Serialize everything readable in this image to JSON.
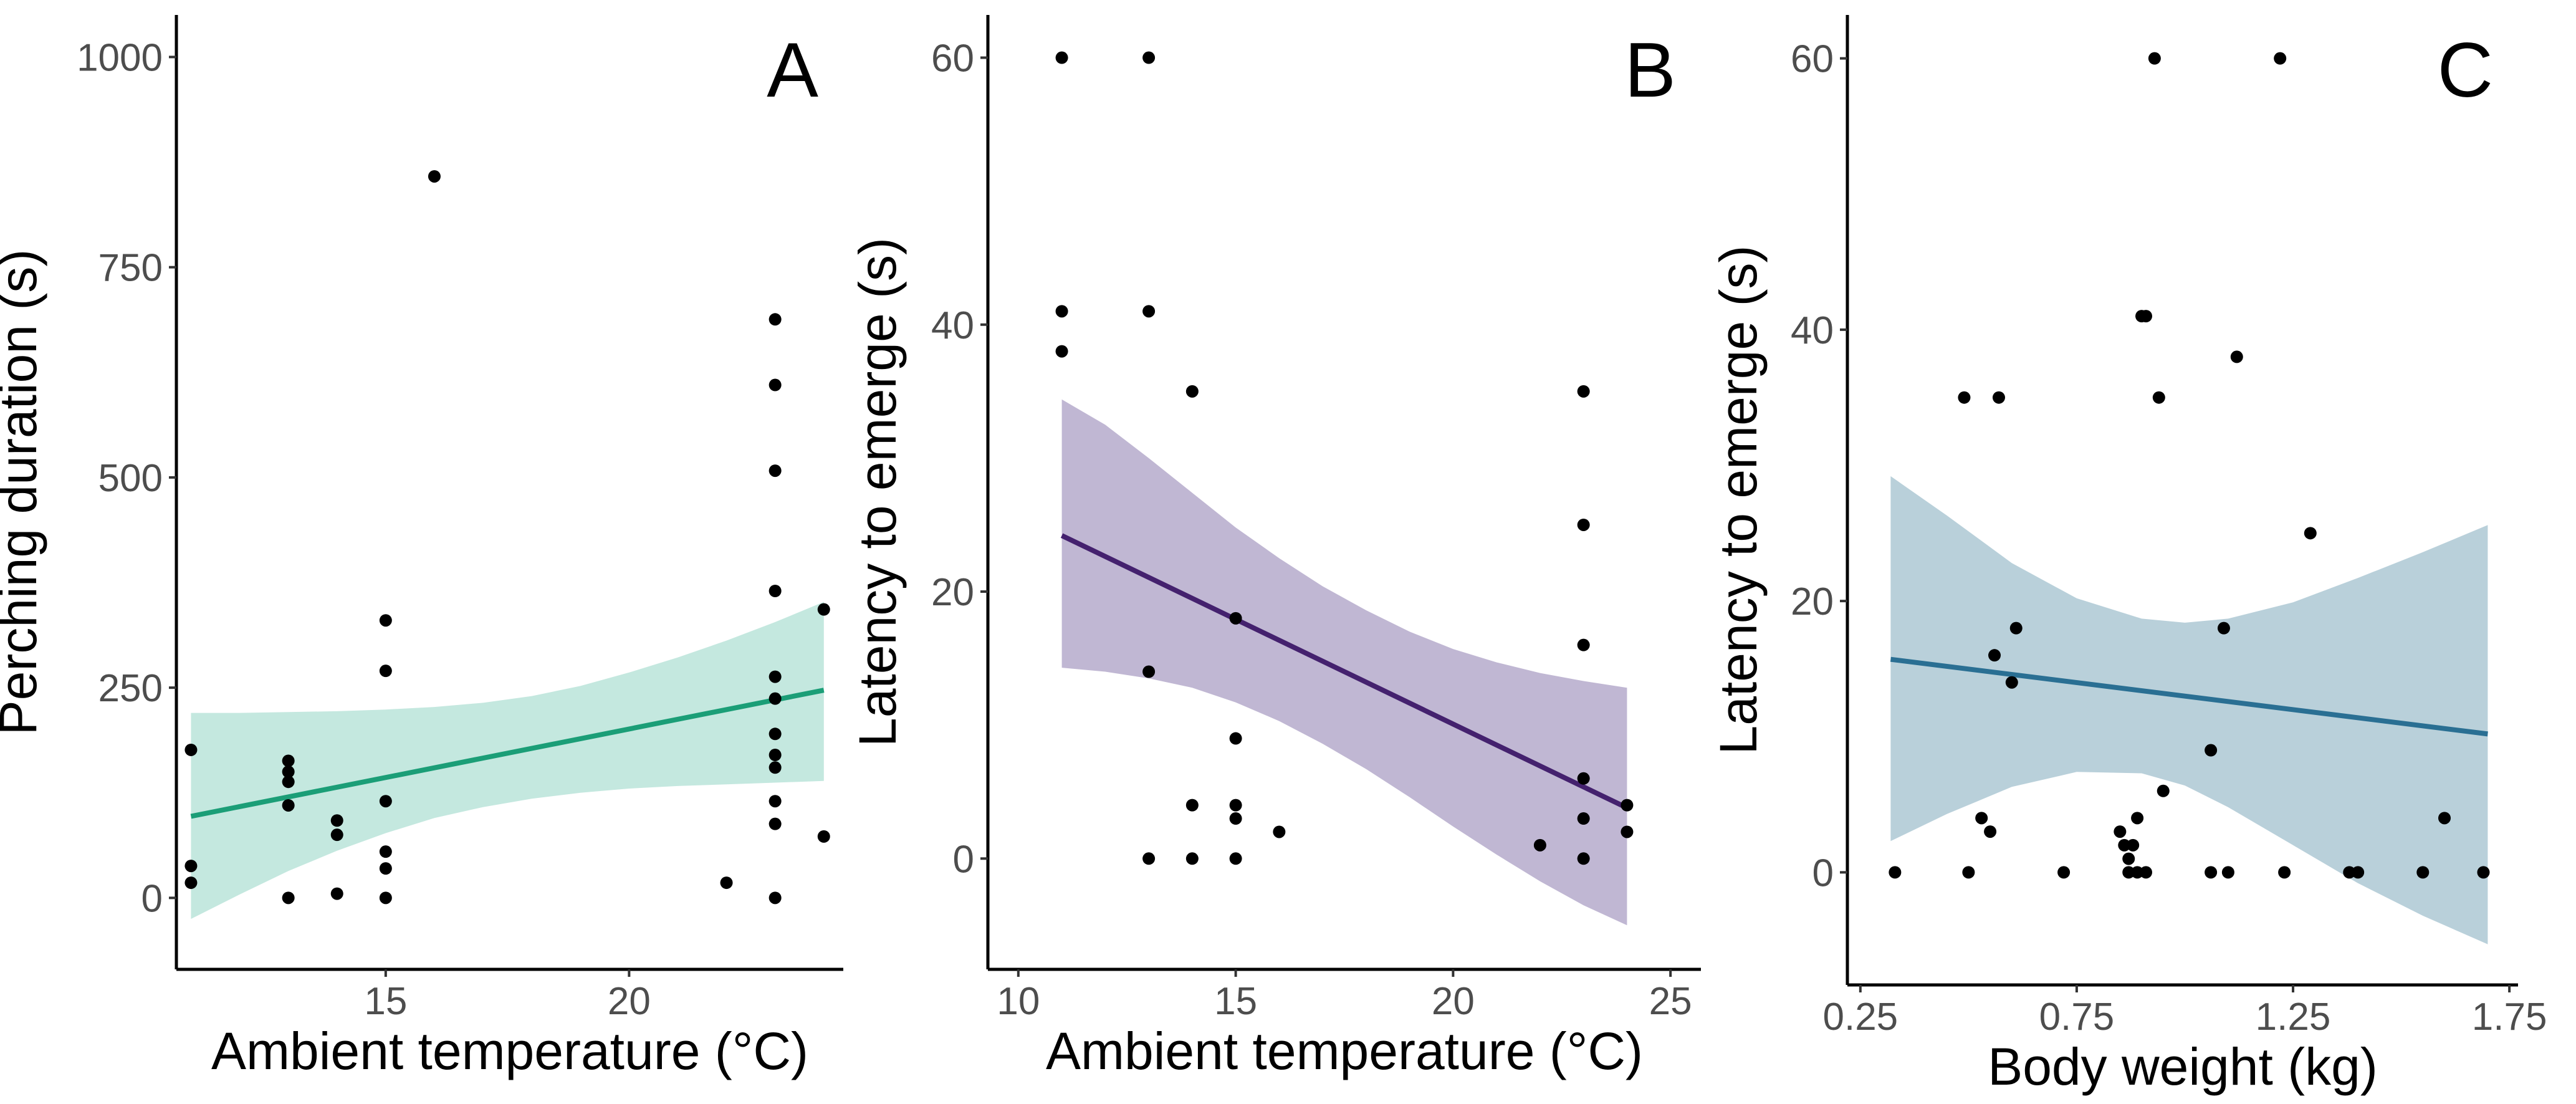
{
  "chart_data": [
    {
      "type": "scatter",
      "panel_label": "A",
      "xlabel": "Ambient temperature (°C)",
      "ylabel": "Perching duration (s)",
      "xlim": [
        10.7,
        24.4
      ],
      "ylim": [
        -85,
        1050
      ],
      "xticks": [
        15,
        20
      ],
      "yticks": [
        0,
        250,
        500,
        750,
        1000
      ],
      "xtick_labels": [
        "15",
        "20"
      ],
      "ytick_labels": [
        "0",
        "250",
        "500",
        "750",
        "1000"
      ],
      "grid": false,
      "legend": "none",
      "colors": {
        "line": "#1b9e77",
        "band": "#c4e8df",
        "points": "#000000"
      },
      "fit": {
        "x": [
          11,
          24
        ],
        "y": [
          97,
          247
        ]
      },
      "band": {
        "x": [
          11,
          12,
          13,
          14,
          15,
          16,
          17,
          18,
          19,
          20,
          21,
          22,
          23,
          24
        ],
        "lower": [
          -25,
          4,
          32,
          56,
          77,
          95,
          108,
          118,
          125,
          130,
          133,
          135,
          137,
          139
        ],
        "upper": [
          220,
          220,
          221,
          222,
          224,
          227,
          232,
          240,
          252,
          268,
          286,
          306,
          328,
          352
        ]
      },
      "points": [
        [
          11,
          176
        ],
        [
          11,
          38
        ],
        [
          11,
          18
        ],
        [
          13,
          163
        ],
        [
          13,
          150
        ],
        [
          13,
          138
        ],
        [
          13,
          110
        ],
        [
          13,
          0
        ],
        [
          14,
          92
        ],
        [
          14,
          75
        ],
        [
          14,
          5
        ],
        [
          15,
          330
        ],
        [
          15,
          270
        ],
        [
          15,
          115
        ],
        [
          15,
          55
        ],
        [
          15,
          35
        ],
        [
          15,
          0
        ],
        [
          16,
          858
        ],
        [
          22,
          18
        ],
        [
          23,
          688
        ],
        [
          23,
          610
        ],
        [
          23,
          508
        ],
        [
          23,
          365
        ],
        [
          23,
          263
        ],
        [
          23,
          237
        ],
        [
          23,
          195
        ],
        [
          23,
          170
        ],
        [
          23,
          155
        ],
        [
          23,
          115
        ],
        [
          23,
          88
        ],
        [
          23,
          0
        ],
        [
          24,
          343
        ],
        [
          24,
          73
        ]
      ]
    },
    {
      "type": "scatter",
      "panel_label": "B",
      "xlabel": "Ambient temperature (°C)",
      "ylabel": "Latency to emerge (s)",
      "xlim": [
        9.3,
        25.7
      ],
      "ylim": [
        -8.3,
        63.2
      ],
      "xticks": [
        10,
        15,
        20,
        25
      ],
      "yticks": [
        0,
        20,
        40,
        60
      ],
      "xtick_labels": [
        "10",
        "15",
        "20",
        "25"
      ],
      "ytick_labels": [
        "0",
        "20",
        "40",
        "60"
      ],
      "grid": false,
      "legend": "none",
      "colors": {
        "line": "#44216e",
        "band": "#c0b7d3",
        "points": "#000000"
      },
      "fit": {
        "x": [
          11,
          24
        ],
        "y": [
          24.2,
          3.8
        ]
      },
      "band": {
        "x": [
          11,
          12,
          13,
          14,
          15,
          16,
          17,
          18,
          19,
          20,
          21,
          22,
          23,
          24
        ],
        "lower": [
          14.3,
          14.0,
          13.5,
          12.8,
          11.7,
          10.3,
          8.6,
          6.7,
          4.6,
          2.4,
          0.3,
          -1.7,
          -3.5,
          -5.0
        ],
        "upper": [
          34.4,
          32.5,
          30.0,
          27.4,
          24.8,
          22.5,
          20.4,
          18.6,
          17.0,
          15.7,
          14.7,
          13.9,
          13.3,
          12.8
        ]
      },
      "points": [
        [
          11,
          60
        ],
        [
          11,
          41
        ],
        [
          11,
          38
        ],
        [
          13,
          60
        ],
        [
          13,
          41
        ],
        [
          13,
          14
        ],
        [
          13,
          0
        ],
        [
          14,
          35
        ],
        [
          14,
          4
        ],
        [
          14,
          0
        ],
        [
          15,
          18
        ],
        [
          15,
          9
        ],
        [
          15,
          4
        ],
        [
          15,
          3
        ],
        [
          15,
          0
        ],
        [
          16,
          2
        ],
        [
          22,
          1
        ],
        [
          23,
          35
        ],
        [
          23,
          25
        ],
        [
          23,
          16
        ],
        [
          23,
          6
        ],
        [
          23,
          3
        ],
        [
          23,
          0
        ],
        [
          24,
          4
        ],
        [
          24,
          2
        ]
      ]
    },
    {
      "type": "scatter",
      "panel_label": "C",
      "xlabel": "Body weight (kg)",
      "ylabel": "Latency to emerge (s)",
      "xlim": [
        0.22,
        1.77
      ],
      "ylim": [
        -8.3,
        63.2
      ],
      "xticks": [
        0.25,
        0.75,
        1.25,
        1.75
      ],
      "yticks": [
        0,
        20,
        40,
        60
      ],
      "xtick_labels": [
        "0.25",
        "0.75",
        "1.25",
        "1.75"
      ],
      "ytick_labels": [
        "0",
        "20",
        "40",
        "60"
      ],
      "grid": false,
      "legend": "none",
      "colors": {
        "line": "#2a6f93",
        "band": "#b9d0da",
        "points": "#000000"
      },
      "fit": {
        "x": [
          0.32,
          1.7
        ],
        "y": [
          15.7,
          10.2
        ]
      },
      "band": {
        "x": [
          0.32,
          0.45,
          0.6,
          0.75,
          0.9,
          1.0,
          1.1,
          1.25,
          1.4,
          1.55,
          1.7
        ],
        "lower": [
          2.3,
          4.3,
          6.3,
          7.4,
          7.3,
          6.4,
          4.8,
          2.0,
          -0.8,
          -3.2,
          -5.3
        ],
        "upper": [
          29.2,
          26.3,
          22.8,
          20.2,
          18.7,
          18.4,
          18.7,
          19.9,
          21.7,
          23.6,
          25.6
        ]
      },
      "points": [
        [
          0.33,
          0
        ],
        [
          0.49,
          35
        ],
        [
          0.5,
          0
        ],
        [
          0.53,
          4
        ],
        [
          0.55,
          3
        ],
        [
          0.56,
          16
        ],
        [
          0.57,
          35
        ],
        [
          0.6,
          14
        ],
        [
          0.61,
          18
        ],
        [
          0.72,
          0
        ],
        [
          0.85,
          3
        ],
        [
          0.86,
          2
        ],
        [
          0.87,
          1
        ],
        [
          0.87,
          0
        ],
        [
          0.88,
          2
        ],
        [
          0.89,
          4
        ],
        [
          0.89,
          0
        ],
        [
          0.9,
          41
        ],
        [
          0.91,
          41
        ],
        [
          0.91,
          0
        ],
        [
          0.93,
          60
        ],
        [
          0.94,
          35
        ],
        [
          0.95,
          6
        ],
        [
          1.06,
          9
        ],
        [
          1.06,
          0
        ],
        [
          1.09,
          18
        ],
        [
          1.1,
          0
        ],
        [
          1.12,
          38
        ],
        [
          1.22,
          60
        ],
        [
          1.23,
          0
        ],
        [
          1.29,
          25
        ],
        [
          1.38,
          0
        ],
        [
          1.4,
          0
        ],
        [
          1.55,
          0
        ],
        [
          1.6,
          4
        ],
        [
          1.69,
          0
        ]
      ]
    }
  ]
}
